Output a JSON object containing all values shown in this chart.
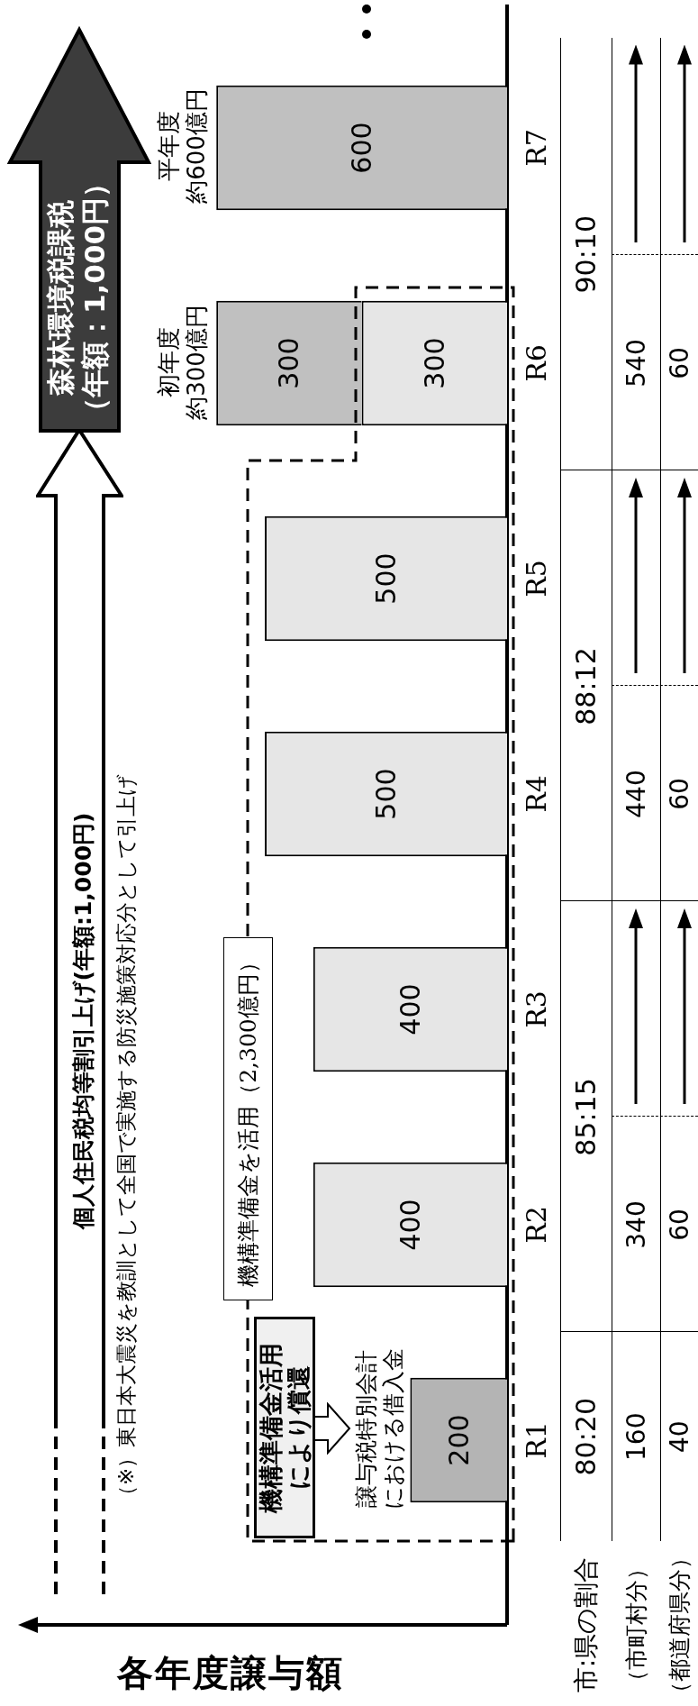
{
  "chart_data": {
    "type": "bar",
    "stacked": true,
    "orientation": "horizontal",
    "data_labels": true,
    "ylabel": "各年度譲与額",
    "categories": [
      "R7",
      "R6",
      "R5",
      "R4",
      "R3",
      "R2",
      "R1"
    ],
    "series": [
      {
        "color": "#b4b4b4",
        "values": [
          null,
          null,
          null,
          null,
          null,
          null,
          200
        ]
      },
      {
        "color": "#e6e6e6",
        "values": [
          null,
          300,
          500,
          500,
          400,
          400,
          null
        ]
      },
      {
        "color": "#c0c0c0",
        "values": [
          600,
          300,
          null,
          null,
          null,
          null,
          null
        ]
      }
    ],
    "annotations": [
      "個人住民税均等割引上げ(年額:1,000円)",
      "（※）東日本大震災を教訓として全国で実施する防災施策対応分として引上げ",
      "森林環境税課税",
      "（年額：1,000円）",
      "機構準備金を活用（2,300億円）",
      "機構準備金活用により償還",
      "譲与税特別会計における借入金",
      "初年度",
      "約300億円",
      "平年度",
      "約600億円",
      "市:県の割合",
      "（市町村分）",
      "（都道府県分）",
      "80:20",
      "160",
      "40",
      "85:15",
      "340",
      "60",
      "88:12",
      "440",
      "60",
      "90:10",
      "540",
      "60"
    ]
  }
}
